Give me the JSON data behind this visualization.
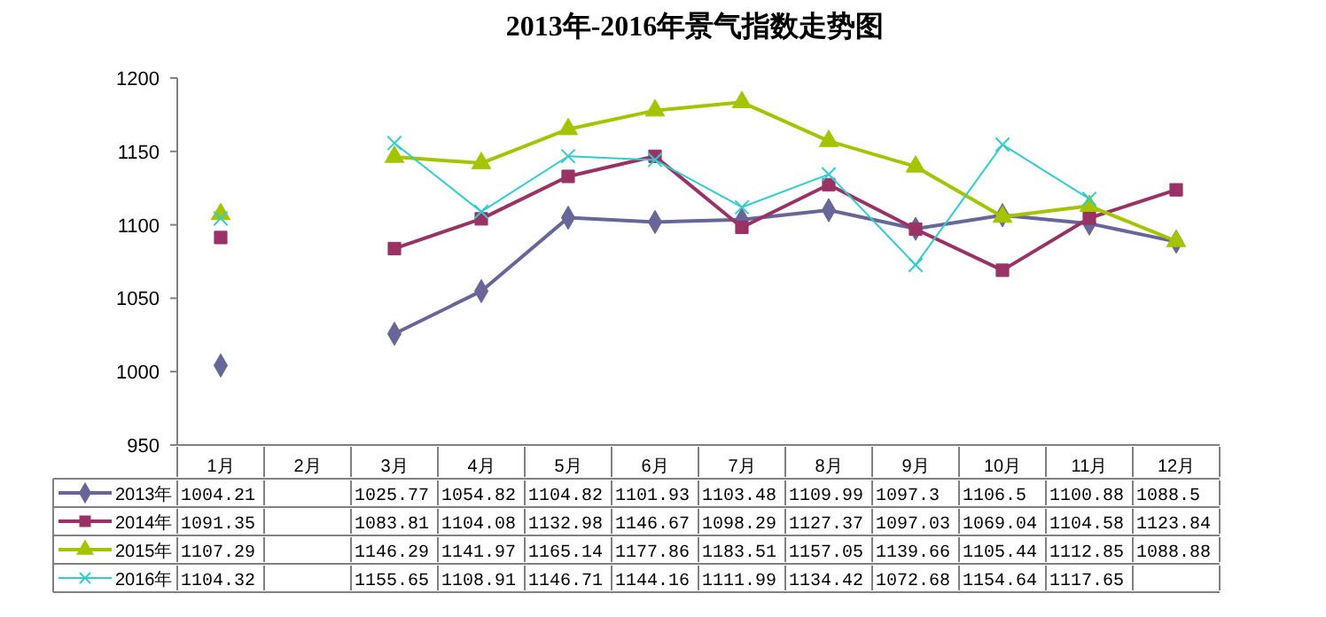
{
  "chart_data": {
    "type": "line",
    "title": "2013年-2016年景气指数走势图",
    "categories": [
      "1月",
      "2月",
      "3月",
      "4月",
      "5月",
      "6月",
      "7月",
      "8月",
      "9月",
      "10月",
      "11月",
      "12月"
    ],
    "series": [
      {
        "name": "2013年",
        "color": "#666699",
        "marker": "diamond",
        "values": [
          1004.21,
          null,
          1025.77,
          1054.82,
          1104.82,
          1101.93,
          1103.48,
          1109.99,
          1097.3,
          1106.5,
          1100.88,
          1088.5
        ]
      },
      {
        "name": "2014年",
        "color": "#993366",
        "marker": "square",
        "values": [
          1091.35,
          null,
          1083.81,
          1104.08,
          1132.98,
          1146.67,
          1098.29,
          1127.37,
          1097.03,
          1069.04,
          1104.58,
          1123.84
        ]
      },
      {
        "name": "2015年",
        "color": "#a5c400",
        "marker": "triangle",
        "values": [
          1107.29,
          null,
          1146.29,
          1141.97,
          1165.14,
          1177.86,
          1183.51,
          1157.05,
          1139.66,
          1105.44,
          1112.85,
          1088.88
        ]
      },
      {
        "name": "2016年",
        "color": "#33cccc",
        "marker": "cross",
        "values": [
          1104.32,
          null,
          1155.65,
          1108.91,
          1146.71,
          1144.16,
          1111.99,
          1134.42,
          1072.68,
          1154.64,
          1117.65,
          null
        ]
      }
    ],
    "ylim": [
      950,
      1200
    ],
    "yticks": [
      950,
      1000,
      1050,
      1100,
      1150,
      1200
    ],
    "grid": false,
    "legend": "bottom",
    "data_labels": true
  }
}
